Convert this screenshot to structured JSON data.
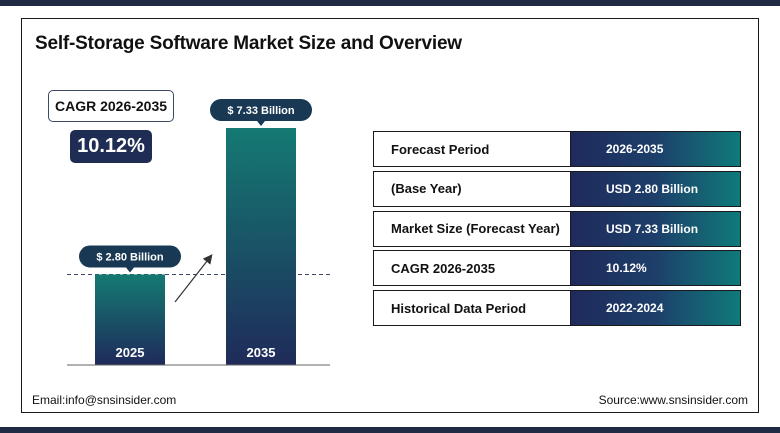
{
  "title": "Self-Storage Software Market Size and Overview",
  "cagr": {
    "label": "CAGR 2026-2035",
    "value": "10.12%"
  },
  "chart_data": {
    "type": "bar",
    "categories": [
      "2025",
      "2035"
    ],
    "values": [
      2.8,
      7.33
    ],
    "data_labels": [
      "$ 2.80 Billion",
      "$ 7.33 Billion"
    ],
    "units": "USD Billion",
    "ylim": [
      0,
      7.33
    ],
    "reference_line": 2.8,
    "grid": false,
    "colors": {
      "bar_top": "#147a72",
      "bar_bottom": "#1f2b5a",
      "label_bg": "#183853"
    }
  },
  "table": {
    "rows": [
      {
        "label": "Forecast Period",
        "value": "2026-2035"
      },
      {
        "label": "(Base Year)",
        "value": "USD 2.80 Billion"
      },
      {
        "label": "Market Size (Forecast Year)",
        "value": "USD 7.33 Billion"
      },
      {
        "label": "CAGR 2026-2035",
        "value": "10.12%"
      },
      {
        "label": "Historical Data Period",
        "value": "2022-2024"
      }
    ]
  },
  "footer": {
    "email": "Email:info@snsinsider.com",
    "source": "Source:www.snsinsider.com"
  }
}
